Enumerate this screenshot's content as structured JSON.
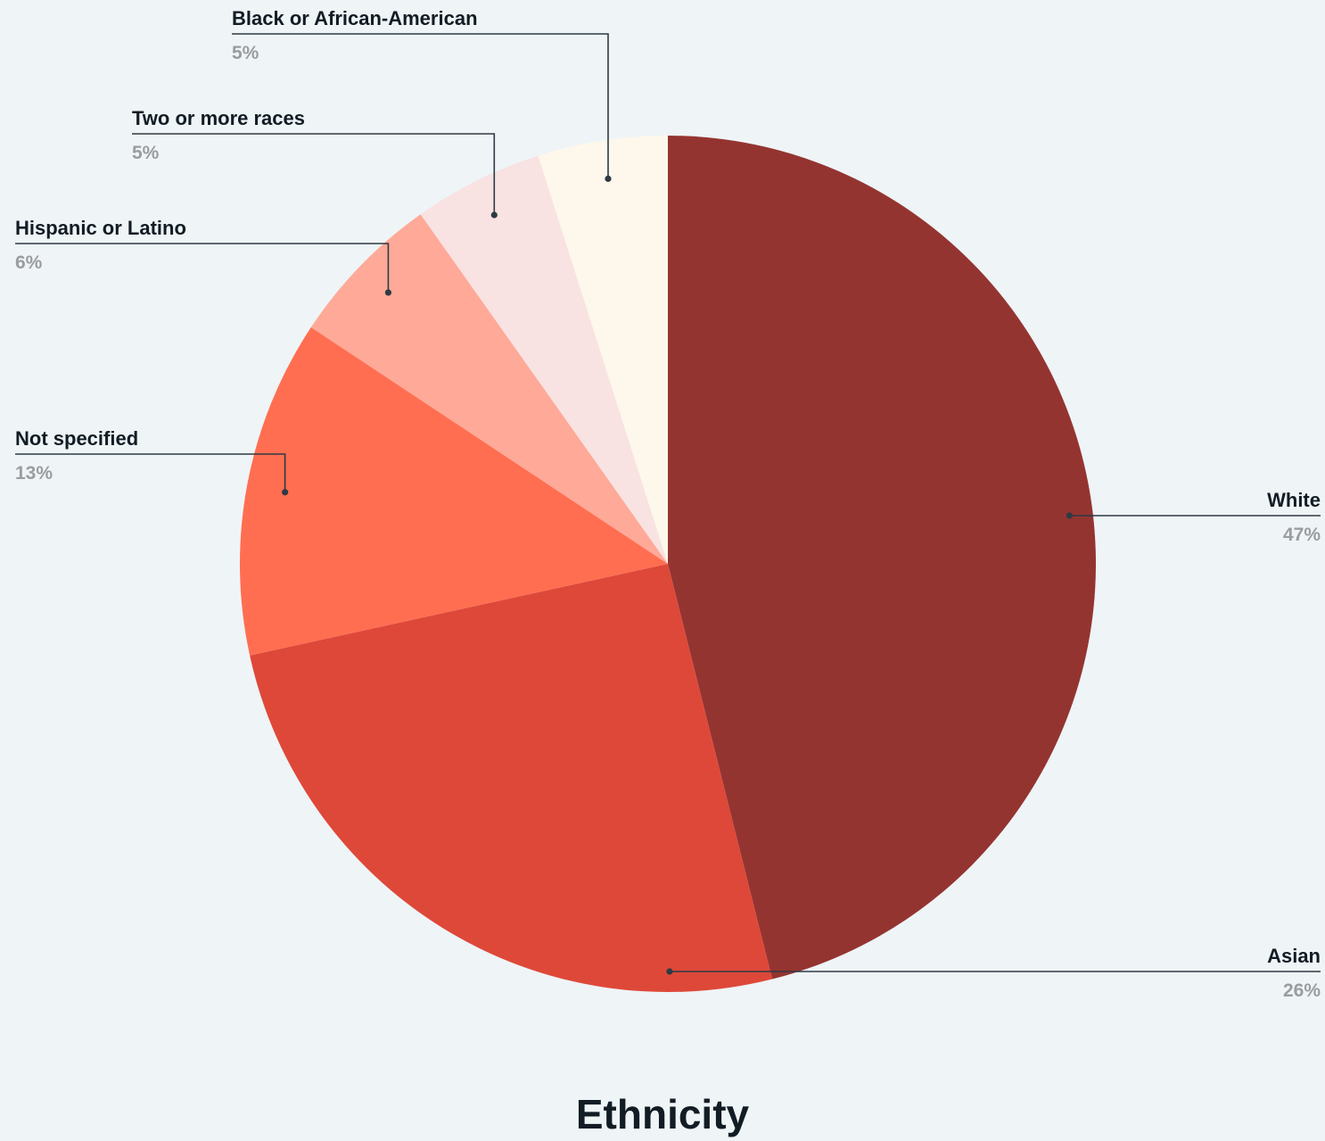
{
  "chart_data": {
    "type": "pie",
    "title": "Ethnicity",
    "slices": [
      {
        "label": "White",
        "value": 47,
        "display": "47%",
        "color": "#943431"
      },
      {
        "label": "Asian",
        "value": 26,
        "display": "26%",
        "color": "#de4839"
      },
      {
        "label": "Not specified",
        "value": 13,
        "display": "13%",
        "color": "#ff6e51"
      },
      {
        "label": "Hispanic or Latino",
        "value": 6,
        "display": "6%",
        "color": "#ffa998"
      },
      {
        "label": "Two or more races",
        "value": 5,
        "display": "5%",
        "color": "#f8e2e2"
      },
      {
        "label": "Black or African-American",
        "value": 5,
        "display": "5%",
        "color": "#fdf8eb"
      }
    ]
  }
}
